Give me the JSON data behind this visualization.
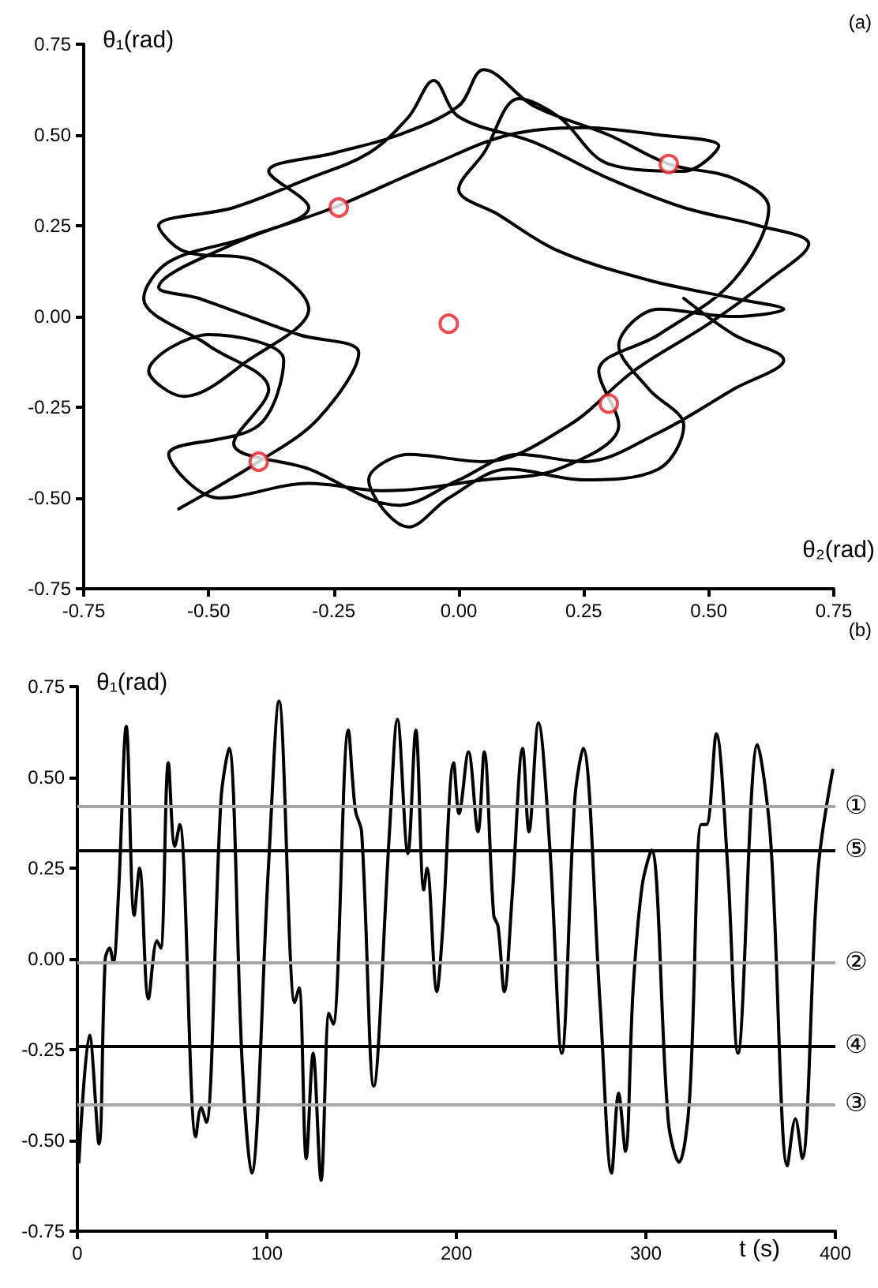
{
  "chart_data": [
    {
      "type": "line",
      "annotations": [
        "(a)"
      ],
      "xlabel": "θ₂(rad)",
      "ylabel": "θ₁(rad)",
      "xlim": [
        -0.75,
        0.75
      ],
      "ylim": [
        -0.75,
        0.75
      ],
      "xticks": [
        -0.75,
        {
          "value": -0.5,
          "label": "-0.50"
        },
        -0.25,
        {
          "value": 0,
          "label": "0.00"
        },
        0.25,
        {
          "value": 0.5,
          "label": "0.50"
        },
        0.75
      ],
      "yticks": [
        -0.75,
        {
          "value": -0.5,
          "label": "-0.50"
        },
        -0.25,
        {
          "value": 0,
          "label": "0.00"
        },
        0.25,
        {
          "value": 0.5,
          "label": "0.50"
        },
        0.75
      ],
      "grid": false,
      "series": [
        {
          "color": "#000000",
          "marker": "none",
          "x": [
            -0.56,
            -0.4,
            -0.28,
            -0.2,
            -0.32,
            -0.52,
            -0.6,
            -0.45,
            -0.25,
            -0.05,
            0.1,
            0.25,
            0.4,
            0.52,
            0.45,
            0.3,
            0.2,
            0.12,
            0.05,
            0.0,
            0.08,
            0.2,
            0.38,
            0.55,
            0.65,
            0.55,
            0.4,
            0.32,
            0.38,
            0.45,
            0.4,
            0.25,
            0.1,
            -0.02,
            -0.1,
            -0.18,
            -0.1,
            0.05,
            0.22,
            0.35,
            0.5,
            0.62,
            0.7,
            0.6,
            0.45,
            0.3,
            0.15,
            0.0,
            -0.05,
            -0.1,
            -0.18,
            -0.3,
            -0.45,
            -0.6,
            -0.55,
            -0.4,
            -0.3,
            -0.42,
            -0.55,
            -0.62,
            -0.5,
            -0.35,
            -0.4,
            -0.58,
            -0.48,
            -0.3,
            -0.15,
            0.05,
            0.2,
            0.32,
            0.28,
            0.4,
            0.55,
            0.62,
            0.55,
            0.42,
            0.3,
            0.15,
            0.05,
            0.0,
            -0.12,
            -0.25,
            -0.38,
            -0.3,
            -0.42,
            -0.58,
            -0.63,
            -0.5,
            -0.38,
            -0.45,
            -0.3,
            -0.12,
            0.0,
            0.12,
            0.25,
            0.4,
            0.55,
            0.65,
            0.55,
            0.45
          ],
          "values": [
            -0.53,
            -0.4,
            -0.28,
            -0.1,
            -0.05,
            0.05,
            0.08,
            0.2,
            0.3,
            0.42,
            0.5,
            0.52,
            0.5,
            0.47,
            0.4,
            0.42,
            0.55,
            0.6,
            0.45,
            0.35,
            0.28,
            0.18,
            0.1,
            0.05,
            0.02,
            0.0,
            0.02,
            -0.08,
            -0.2,
            -0.3,
            -0.42,
            -0.45,
            -0.42,
            -0.5,
            -0.58,
            -0.45,
            -0.38,
            -0.4,
            -0.3,
            -0.15,
            -0.02,
            0.1,
            0.2,
            0.25,
            0.3,
            0.38,
            0.48,
            0.55,
            0.65,
            0.55,
            0.45,
            0.38,
            0.3,
            0.25,
            0.18,
            0.15,
            0.02,
            -0.12,
            -0.22,
            -0.15,
            -0.05,
            -0.12,
            -0.3,
            -0.38,
            -0.5,
            -0.46,
            -0.48,
            -0.45,
            -0.42,
            -0.3,
            -0.15,
            -0.05,
            0.1,
            0.3,
            0.38,
            0.42,
            0.5,
            0.58,
            0.68,
            0.58,
            0.5,
            0.45,
            0.4,
            0.3,
            0.22,
            0.15,
            0.05,
            -0.08,
            -0.2,
            -0.35,
            -0.42,
            -0.52,
            -0.45,
            -0.38,
            -0.4,
            -0.32,
            -0.2,
            -0.12,
            -0.05,
            0.05
          ]
        },
        {
          "type": "scatter",
          "color": "#ee1c24",
          "marker": "circle",
          "x": [
            0.42,
            -0.24,
            -0.02,
            0.3,
            -0.4
          ],
          "values": [
            0.42,
            0.3,
            -0.02,
            -0.24,
            -0.4
          ]
        }
      ]
    },
    {
      "type": "line",
      "annotations": [
        "(b)"
      ],
      "xlabel": "t (s)",
      "ylabel": "θ₁(rad)",
      "xlim": [
        0,
        400
      ],
      "xticks": [
        0,
        100,
        200,
        300,
        400
      ],
      "ylim": [
        -0.75,
        0.75
      ],
      "yticks": [
        -0.75,
        {
          "value": -0.5,
          "label": "-0.50"
        },
        -0.25,
        {
          "value": 0,
          "label": "0.00"
        },
        0.25,
        {
          "value": 0.5,
          "label": "0.50"
        },
        0.75
      ],
      "grid": false,
      "series": [
        {
          "color": "#000000",
          "marker": "none",
          "x": [
            0.8,
            6.4,
            11.4,
            14.7,
            17,
            18.9,
            21.7,
            25.8,
            30,
            32.8,
            37.5,
            42,
            44,
            48,
            51.4,
            54,
            62.5,
            65.3,
            68,
            75.8,
            80,
            87,
            91.9,
            100.8,
            106.4,
            114.7,
            117,
            120.8,
            124.4,
            128.6,
            132.8,
            135,
            143,
            146.7,
            150,
            156.4,
            164.7,
            168.9,
            174.4,
            178.6,
            182.8,
            184.5,
            189.7,
            192.5,
            198.6,
            201.4,
            206.4,
            211.4,
            214.7,
            219.7,
            222,
            225.3,
            229.4,
            235,
            238.3,
            243.3,
            249.4,
            255.6,
            262.5,
            266.9,
            275.8,
            281.9,
            285.6,
            289.2,
            293.3,
            298,
            303,
            311.9,
            317.5,
            323,
            329.2,
            332,
            337.2,
            343.1,
            348.6,
            358.9,
            365.8,
            374.7,
            378.9,
            382.5,
            390.8,
            398.6
          ],
          "values": [
            -0.56,
            -0.21,
            -0.51,
            0.0,
            0.03,
            -0.01,
            0.18,
            0.64,
            0.12,
            0.25,
            -0.11,
            0.05,
            0.03,
            0.54,
            0.31,
            0.37,
            -0.49,
            -0.41,
            -0.45,
            0.44,
            0.58,
            -0.29,
            -0.59,
            0.25,
            0.71,
            -0.12,
            -0.08,
            -0.55,
            -0.26,
            -0.61,
            -0.15,
            -0.18,
            0.63,
            0.41,
            0.35,
            -0.35,
            0.35,
            0.66,
            0.29,
            0.63,
            0.19,
            0.25,
            -0.09,
            0.06,
            0.54,
            0.4,
            0.57,
            0.35,
            0.57,
            0.12,
            0.09,
            -0.09,
            0.17,
            0.58,
            0.35,
            0.65,
            0.3,
            -0.26,
            0.44,
            0.58,
            -0.12,
            -0.59,
            -0.37,
            -0.53,
            -0.08,
            0.2,
            0.3,
            -0.45,
            -0.56,
            -0.39,
            0.37,
            0.37,
            0.62,
            0.26,
            -0.26,
            0.59,
            0.33,
            -0.57,
            -0.44,
            -0.55,
            0.24,
            0.52
          ]
        }
      ],
      "ref_lines": [
        {
          "axis": "y",
          "value": 0.42,
          "label": "①",
          "color": "#a6a6a6"
        },
        {
          "axis": "y",
          "value": 0.3,
          "label": "⑤",
          "color": "#000000"
        },
        {
          "axis": "y",
          "value": -0.01,
          "label": "②",
          "color": "#a6a6a6"
        },
        {
          "axis": "y",
          "value": -0.24,
          "label": "④",
          "color": "#000000"
        },
        {
          "axis": "y",
          "value": -0.4,
          "label": "③",
          "color": "#a6a6a6"
        }
      ]
    }
  ]
}
